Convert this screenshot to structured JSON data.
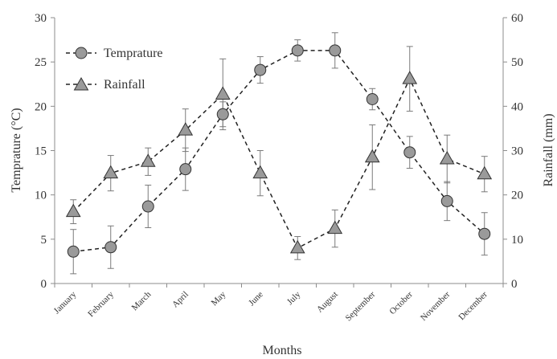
{
  "chart_data": {
    "type": "line",
    "xlabel": "Months",
    "ylabel_left": "Temprature (°C)",
    "ylabel_right": "Rainfall (mm)",
    "ylim_left": [
      0,
      30
    ],
    "ylim_right": [
      0,
      60
    ],
    "yticks_left": [
      "0",
      "5",
      "10",
      "15",
      "20",
      "25",
      "30"
    ],
    "yticks_right": [
      "0",
      "10",
      "20",
      "30",
      "40",
      "50",
      "60"
    ],
    "grid": false,
    "legend_position": "top-left",
    "categories": [
      "January",
      "February",
      "March",
      "April",
      "May",
      "June",
      "July",
      "August",
      "September",
      "October",
      "November",
      "December"
    ],
    "series": [
      {
        "name": "Temprature",
        "axis": "left",
        "marker": "circle",
        "values": [
          3.6,
          4.1,
          8.7,
          12.9,
          19.1,
          24.1,
          26.3,
          26.3,
          20.8,
          14.8,
          9.3,
          5.6
        ],
        "error": [
          2.5,
          2.4,
          2.4,
          2.4,
          1.4,
          1.5,
          1.2,
          2.0,
          1.2,
          1.8,
          2.2,
          2.4
        ]
      },
      {
        "name": "Rainfall",
        "axis": "right",
        "marker": "triangle",
        "values": [
          16.2,
          24.9,
          27.5,
          34.6,
          42.7,
          24.9,
          8.0,
          12.4,
          28.5,
          46.2,
          28.1,
          24.7
        ],
        "error": [
          2.7,
          4.0,
          3.1,
          4.8,
          8.0,
          5.1,
          2.6,
          4.2,
          7.3,
          7.3,
          5.4,
          4.0
        ]
      }
    ]
  }
}
